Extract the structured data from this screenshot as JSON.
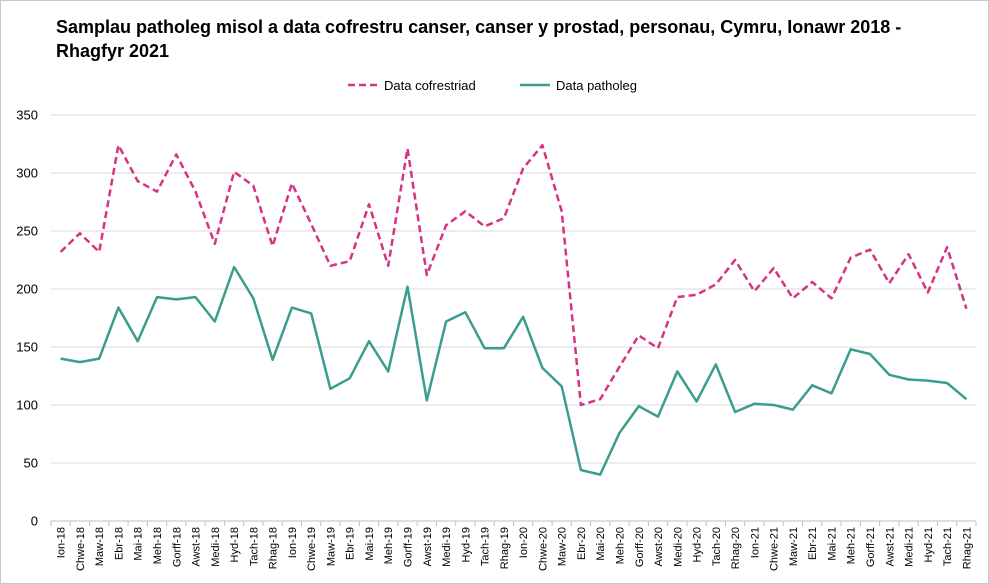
{
  "chart_data": {
    "type": "line",
    "title": "Samplau patholeg misol a data cofrestru canser, canser y prostad, personau, Cymru, Ionawr 2018 - Rhagfyr 2021",
    "xlabel": "",
    "ylabel": "",
    "ylim": [
      0,
      350
    ],
    "yticks": [
      0,
      50,
      100,
      150,
      200,
      250,
      300,
      350
    ],
    "grid": "horizontal",
    "legend_position": "top",
    "categories": [
      "Ion-18",
      "Chwe-18",
      "Maw-18",
      "Ebr-18",
      "Mai-18",
      "Meh-18",
      "Gorff-18",
      "Awst-18",
      "Medi-18",
      "Hyd-18",
      "Tach-18",
      "Rhag-18",
      "Ion-19",
      "Chwe-19",
      "Maw-19",
      "Ebr-19",
      "Mai-19",
      "Meh-19",
      "Gorff-19",
      "Awst-19",
      "Medi-19",
      "Hyd-19",
      "Tach-19",
      "Rhag-19",
      "Ion-20",
      "Chwe-20",
      "Maw-20",
      "Ebr-20",
      "Mai-20",
      "Meh-20",
      "Gorff-20",
      "Awst-20",
      "Medi-20",
      "Hyd-20",
      "Tach-20",
      "Rhag-20",
      "Ion-21",
      "Chwe-21",
      "Maw-21",
      "Ebr-21",
      "Mai-21",
      "Meh-21",
      "Gorff-21",
      "Awst-21",
      "Medi-21",
      "Hyd-21",
      "Tach-21",
      "Rhag-21"
    ],
    "series": [
      {
        "name": "Data cofrestriad",
        "color": "#d63384",
        "dash": "dashed",
        "values": [
          232,
          248,
          232,
          324,
          293,
          284,
          316,
          284,
          239,
          301,
          289,
          237,
          291,
          256,
          220,
          224,
          273,
          220,
          321,
          212,
          255,
          267,
          254,
          261,
          304,
          324,
          267,
          100,
          105,
          133,
          160,
          149,
          193,
          195,
          204,
          225,
          198,
          218,
          192,
          206,
          192,
          227,
          234,
          205,
          230,
          197,
          236,
          183
        ]
      },
      {
        "name": "Data patholeg",
        "color": "#3a9e8f",
        "dash": "solid",
        "values": [
          140,
          137,
          140,
          184,
          155,
          193,
          191,
          193,
          172,
          219,
          192,
          139,
          184,
          179,
          114,
          123,
          155,
          129,
          202,
          104,
          172,
          180,
          149,
          149,
          176,
          132,
          116,
          44,
          40,
          76,
          99,
          90,
          129,
          103,
          135,
          94,
          101,
          100,
          96,
          117,
          110,
          148,
          144,
          126,
          122,
          121,
          119,
          105
        ]
      }
    ]
  }
}
